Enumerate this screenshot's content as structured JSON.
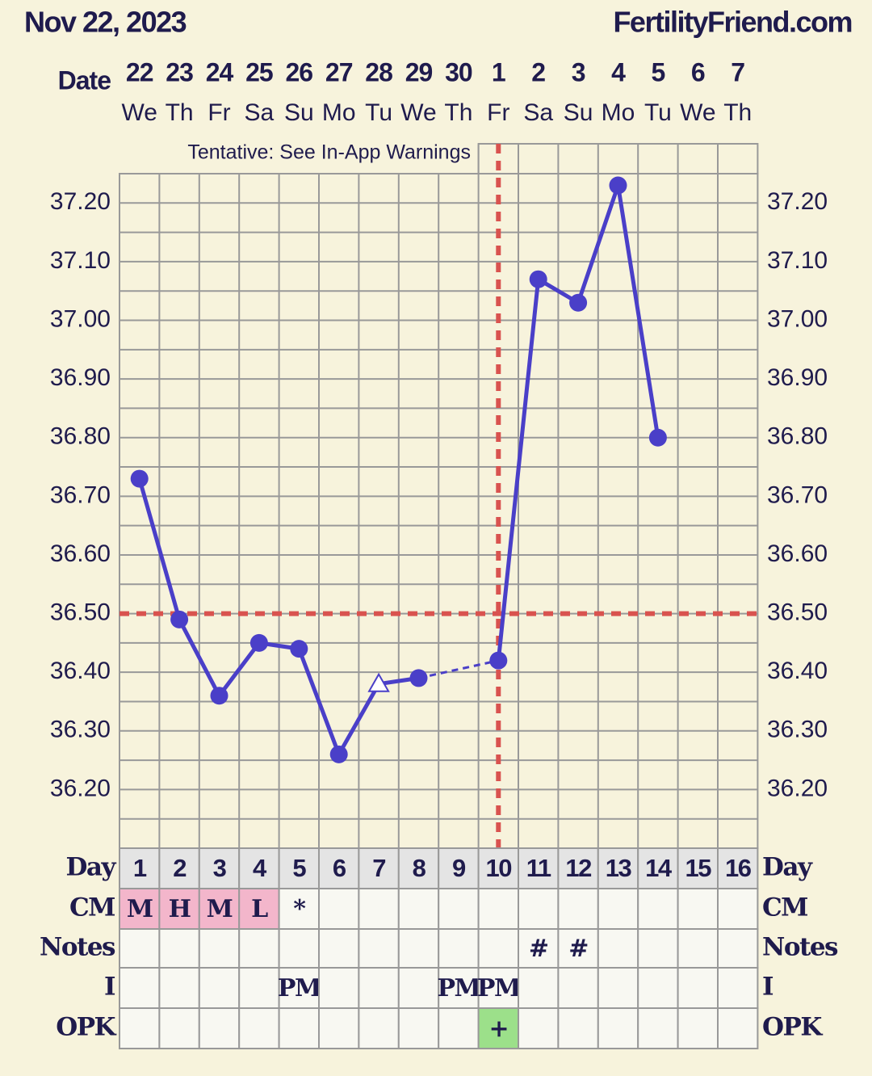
{
  "header": {
    "date": "Nov 22, 2023",
    "site": "FertilityFriend.com"
  },
  "chart_data": {
    "type": "line",
    "annotation": "Tentative: See In-App Warnings",
    "row_labels": {
      "date": "Date",
      "day": "Day",
      "cm": "CM",
      "notes": "Notes",
      "i": "I",
      "opk": "OPK"
    },
    "dates": [
      22,
      23,
      24,
      25,
      26,
      27,
      28,
      29,
      30,
      1,
      2,
      3,
      4,
      5,
      6,
      7
    ],
    "weekdays": [
      "We",
      "Th",
      "Fr",
      "Sa",
      "Su",
      "Mo",
      "Tu",
      "We",
      "Th",
      "Fr",
      "Sa",
      "Su",
      "Mo",
      "Tu",
      "We",
      "Th"
    ],
    "categories": [
      1,
      2,
      3,
      4,
      5,
      6,
      7,
      8,
      9,
      10,
      11,
      12,
      13,
      14,
      15,
      16
    ],
    "values": [
      36.73,
      36.49,
      36.36,
      36.45,
      36.44,
      36.26,
      36.38,
      36.39,
      null,
      36.42,
      37.07,
      37.03,
      37.23,
      36.8,
      null,
      null
    ],
    "markers": [
      "circle",
      "circle",
      "circle",
      "circle",
      "circle",
      "circle",
      "triangle",
      "circle",
      null,
      "circle",
      "circle",
      "circle",
      "circle",
      "circle",
      null,
      null
    ],
    "color": "#4a3fc8",
    "reference_color": "#d9534f",
    "ylim": [
      36.1,
      37.25
    ],
    "yticks": [
      {
        "value": 36.2,
        "label": "36.20"
      },
      {
        "value": 36.3,
        "label": "36.30"
      },
      {
        "value": 36.4,
        "label": "36.40"
      },
      {
        "value": 36.5,
        "label": "36.50"
      },
      {
        "value": 36.6,
        "label": "36.60"
      },
      {
        "value": 36.7,
        "label": "36.70"
      },
      {
        "value": 36.8,
        "label": "36.80"
      },
      {
        "value": 36.9,
        "label": "36.90"
      },
      {
        "value": 37.0,
        "label": "37.00"
      },
      {
        "value": 37.1,
        "label": "37.10"
      },
      {
        "value": 37.2,
        "label": "37.20"
      }
    ],
    "minor_yticks": [
      36.15,
      36.25,
      36.35,
      36.45,
      36.55,
      36.65,
      36.75,
      36.85,
      36.95,
      37.05,
      37.15
    ],
    "grid": true,
    "coverline": 36.5,
    "ovulation_day": 10,
    "cm": [
      "M",
      "H",
      "M",
      "L",
      "*",
      null,
      null,
      null,
      null,
      null,
      null,
      null,
      null,
      null,
      null,
      null
    ],
    "cm_highlight": [
      true,
      true,
      true,
      true,
      false,
      false,
      false,
      false,
      false,
      false,
      false,
      false,
      false,
      false,
      false,
      false
    ],
    "notes": [
      null,
      null,
      null,
      null,
      null,
      null,
      null,
      null,
      null,
      null,
      "#",
      "#",
      null,
      null,
      null,
      null
    ],
    "intercourse": [
      null,
      null,
      null,
      null,
      "PM",
      null,
      null,
      null,
      "PM",
      "PM",
      null,
      null,
      null,
      null,
      null,
      null
    ],
    "opk": [
      null,
      null,
      null,
      null,
      null,
      null,
      null,
      null,
      null,
      "+",
      null,
      null,
      null,
      null,
      null,
      null
    ]
  }
}
